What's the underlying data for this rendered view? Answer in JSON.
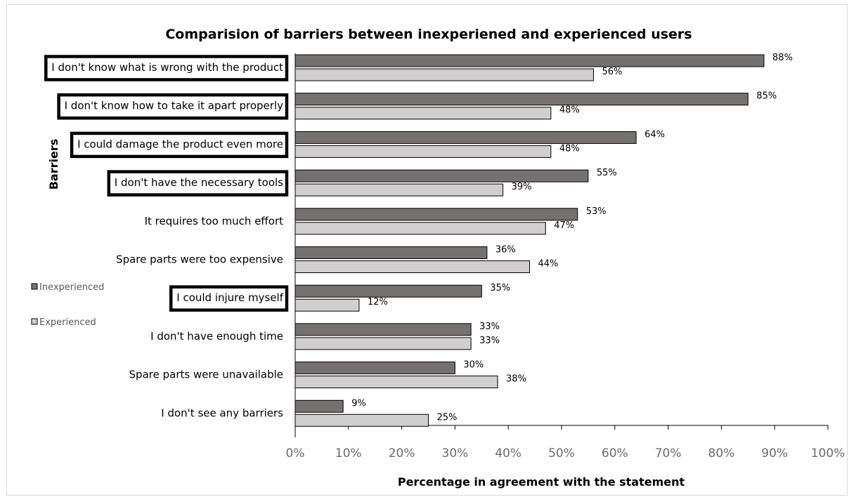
{
  "chart_data": {
    "type": "bar",
    "orientation": "horizontal",
    "title": "Comparision of barriers between inexperiened and experienced users",
    "xlabel": "Percentage in agreement with the statement",
    "ylabel": "Barriers",
    "xlim": [
      0,
      100
    ],
    "x_ticks": [
      "0%",
      "10%",
      "20%",
      "30%",
      "40%",
      "50%",
      "60%",
      "70%",
      "80%",
      "90%",
      "100%"
    ],
    "grid": false,
    "legend_position": "left",
    "categories": [
      "I don't know what is wrong with the product",
      "I don't know how to take it apart properly",
      "I could damage the product even more",
      "I don't have the necessary tools",
      "It requires too much effort",
      "Spare parts were too expensive",
      "I could injure myself",
      "I don't have enough time",
      "Spare parts were unavailable",
      "I don't see any barriers"
    ],
    "highlighted_categories": [
      "I don't know what is wrong with the product",
      "I don't know how to take it apart properly",
      "I could damage the product even more",
      "I don't have the necessary tools",
      "I could injure myself"
    ],
    "series": [
      {
        "name": "Inexperienced",
        "color": "#767171",
        "values": [
          88,
          85,
          64,
          55,
          53,
          36,
          35,
          33,
          30,
          9
        ],
        "labels": [
          "88%",
          "85%",
          "64%",
          "55%",
          "53%",
          "36%",
          "35%",
          "33%",
          "30%",
          "9%"
        ]
      },
      {
        "name": "Experienced",
        "color": "#d0cece",
        "values": [
          56,
          48,
          48,
          39,
          47,
          44,
          12,
          33,
          38,
          25
        ],
        "labels": [
          "56%",
          "48%",
          "48%",
          "39%",
          "47%",
          "44%",
          "12%",
          "33%",
          "38%",
          "25%"
        ]
      }
    ]
  }
}
